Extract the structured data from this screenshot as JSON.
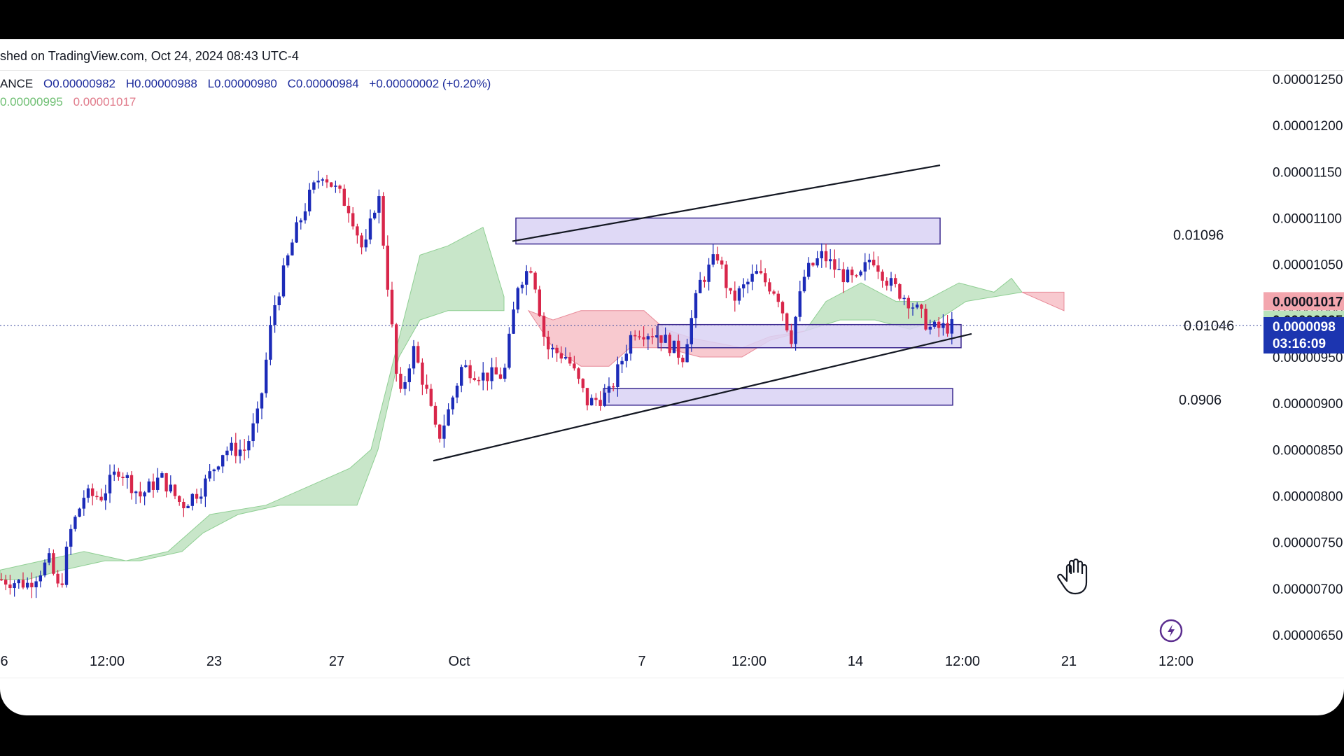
{
  "header": {
    "published": "shed on TradingView.com, Oct 24, 2024 08:43 UTC-4",
    "symbol_fragment": "ANCE",
    "open": "O0.00000982",
    "high": "H0.00000988",
    "low": "L0.00000980",
    "close": "C0.00000984",
    "change": "+0.00000002 (+0.20%)",
    "cloud_a": "0.00000995",
    "cloud_b": "0.00001017"
  },
  "colors": {
    "bull": "#1c2bb8",
    "bear": "#d8264a",
    "cloud_bull": "#c8e6c9",
    "cloud_bear": "#f8c9cf",
    "zone_fill": "#d9d2f5",
    "zone_stroke": "#3b2a8f",
    "price_badge": "#1c35b0"
  },
  "badges": {
    "price": "0.0000098",
    "countdown": "03:16:09",
    "red": "0.00001017",
    "green": "0.00000995"
  },
  "zone_labels": {
    "upper": "0.01096",
    "middle": "0.01046",
    "lower": "0.0906"
  },
  "chart_data": {
    "type": "candlestick",
    "ylim": [
      6.3e-06,
      1.28e-05
    ],
    "y_ticks": [
      "0.00001250",
      "0.00001200",
      "0.00001150",
      "0.00001100",
      "0.00001050",
      "0.00001000",
      "0.00000950",
      "0.00000900",
      "0.00000850",
      "0.00000800",
      "0.00000750",
      "0.00000700",
      "0.00000650"
    ],
    "x_ticks": [
      "6",
      "12:00",
      "23",
      "27",
      "Oct",
      "7",
      "12:00",
      "14",
      "12:00",
      "21",
      "12:00"
    ],
    "current_price": 9.84e-06,
    "price_path": [
      [
        0,
        7.1e-06
      ],
      [
        40,
        7.05e-06
      ],
      [
        70,
        7.3e-06
      ],
      [
        85,
        6.95e-06
      ],
      [
        100,
        7.6e-06
      ],
      [
        120,
        8e-06
      ],
      [
        145,
        8e-06
      ],
      [
        170,
        8.3e-06
      ],
      [
        200,
        8e-06
      ],
      [
        230,
        8.2e-06
      ],
      [
        260,
        7.9e-06
      ],
      [
        290,
        8.1e-06
      ],
      [
        320,
        8.5e-06
      ],
      [
        350,
        8.5e-06
      ],
      [
        370,
        8.9e-06
      ],
      [
        390,
        1e-05
      ],
      [
        405,
        1.04e-05
      ],
      [
        420,
        1.08e-05
      ],
      [
        440,
        1.12e-05
      ],
      [
        460,
        1.15e-05
      ],
      [
        480,
        1.13e-05
      ],
      [
        500,
        1.11e-05
      ],
      [
        520,
        1.06e-05
      ],
      [
        540,
        1.13e-05
      ],
      [
        555,
        1.02e-05
      ],
      [
        570,
        9e-06
      ],
      [
        590,
        9.6e-06
      ],
      [
        610,
        9.1e-06
      ],
      [
        625,
        8.6e-06
      ],
      [
        640,
        8.9e-06
      ],
      [
        660,
        9.4e-06
      ],
      [
        690,
        9.3e-06
      ],
      [
        720,
        9.3e-06
      ],
      [
        740,
        1.03e-05
      ],
      [
        760,
        1.05e-05
      ],
      [
        780,
        9.6e-06
      ],
      [
        810,
        9.5e-06
      ],
      [
        840,
        9e-06
      ],
      [
        870,
        9.1e-06
      ],
      [
        905,
        9.8e-06
      ],
      [
        940,
        9.75e-06
      ],
      [
        975,
        9.5e-06
      ],
      [
        1000,
        1.03e-05
      ],
      [
        1025,
        1.06e-05
      ],
      [
        1045,
        1.01e-05
      ],
      [
        1080,
        1.04e-05
      ],
      [
        1110,
        1.02e-05
      ],
      [
        1130,
        9.7e-06
      ],
      [
        1150,
        1.04e-05
      ],
      [
        1175,
        1.06e-05
      ],
      [
        1200,
        1.04e-05
      ],
      [
        1225,
        1.03e-05
      ],
      [
        1245,
        1.06e-05
      ],
      [
        1270,
        1.03e-05
      ],
      [
        1300,
        1.01e-05
      ],
      [
        1330,
        9.8e-06
      ],
      [
        1368,
        9.84e-06
      ]
    ],
    "cloud_segments": [
      {
        "color": "bull",
        "upper": [
          [
            0,
            7.2e-06
          ],
          [
            60,
            7.3e-06
          ],
          [
            120,
            7.4e-06
          ],
          [
            180,
            7.3e-06
          ],
          [
            240,
            7.4e-06
          ],
          [
            300,
            7.8e-06
          ],
          [
            380,
            7.9e-06
          ],
          [
            440,
            8.1e-06
          ],
          [
            500,
            8.3e-06
          ],
          [
            530,
            8.5e-06
          ],
          [
            560,
            9.4e-06
          ],
          [
            580,
            1e-05
          ],
          [
            600,
            1.06e-05
          ],
          [
            640,
            1.07e-05
          ],
          [
            690,
            1.09e-05
          ],
          [
            720,
            1.015e-05
          ]
        ],
        "lower": [
          [
            720,
            1e-05
          ],
          [
            640,
            1e-05
          ],
          [
            600,
            9.9e-06
          ],
          [
            570,
            9.5e-06
          ],
          [
            540,
            8.5e-06
          ],
          [
            510,
            7.9e-06
          ],
          [
            460,
            7.9e-06
          ],
          [
            400,
            7.9e-06
          ],
          [
            340,
            7.8e-06
          ],
          [
            290,
            7.6e-06
          ],
          [
            260,
            7.4e-06
          ],
          [
            200,
            7.3e-06
          ],
          [
            150,
            7.3e-06
          ],
          [
            90,
            7.2e-06
          ],
          [
            40,
            7.1e-06
          ],
          [
            0,
            7.1e-06
          ]
        ]
      },
      {
        "color": "bear",
        "upper": [
          [
            755,
            1e-05
          ],
          [
            790,
            9.9e-06
          ],
          [
            830,
            1e-05
          ],
          [
            880,
            1e-05
          ],
          [
            920,
            1e-05
          ],
          [
            950,
            9.8e-06
          ],
          [
            990,
            9.7e-06
          ],
          [
            1060,
            9.6e-06
          ],
          [
            1100,
            9.72e-06
          ],
          [
            1150,
            9.78e-06
          ]
        ],
        "lower": [
          [
            1150,
            9.78e-06
          ],
          [
            1100,
            9.68e-06
          ],
          [
            1060,
            9.5e-06
          ],
          [
            1000,
            9.5e-06
          ],
          [
            950,
            9.6e-06
          ],
          [
            900,
            9.6e-06
          ],
          [
            870,
            9.4e-06
          ],
          [
            830,
            9.4e-06
          ],
          [
            790,
            9.6e-06
          ],
          [
            755,
            1e-05
          ]
        ]
      },
      {
        "color": "bull",
        "upper": [
          [
            1150,
            9.78e-06
          ],
          [
            1180,
            1.01e-05
          ],
          [
            1230,
            1.03e-05
          ],
          [
            1280,
            1.01e-05
          ],
          [
            1320,
            1.01e-05
          ],
          [
            1370,
            1.03e-05
          ],
          [
            1420,
            1.02e-05
          ],
          [
            1445,
            1.035e-05
          ],
          [
            1460,
            1.02e-05
          ]
        ],
        "lower": [
          [
            1460,
            1.02e-05
          ],
          [
            1420,
            1.015e-05
          ],
          [
            1380,
            1.01e-05
          ],
          [
            1340,
            9.9e-06
          ],
          [
            1300,
            9.8e-06
          ],
          [
            1250,
            9.9e-06
          ],
          [
            1200,
            9.9e-06
          ],
          [
            1150,
            9.78e-06
          ]
        ]
      },
      {
        "color": "bear",
        "upper": [
          [
            1460,
            1.02e-05
          ],
          [
            1520,
            1.02e-05
          ]
        ],
        "lower": [
          [
            1520,
            1e-05
          ],
          [
            1460,
            1.02e-05
          ]
        ]
      }
    ],
    "zones": [
      {
        "x1": 737,
        "x2": 1343,
        "top": 1.1e-05,
        "bottom": 1.072e-05
      },
      {
        "x1": 940,
        "x2": 1373,
        "top": 9.85e-06,
        "bottom": 9.6e-06
      },
      {
        "x1": 862,
        "x2": 1361,
        "top": 9.16e-06,
        "bottom": 8.98e-06
      }
    ],
    "trendlines": [
      {
        "x1": 732,
        "y1": 1.075e-05,
        "x2": 1343,
        "y2": 1.157e-05
      },
      {
        "x1": 619,
        "y1": 8.38e-06,
        "x2": 1388,
        "y2": 9.75e-06
      }
    ]
  }
}
